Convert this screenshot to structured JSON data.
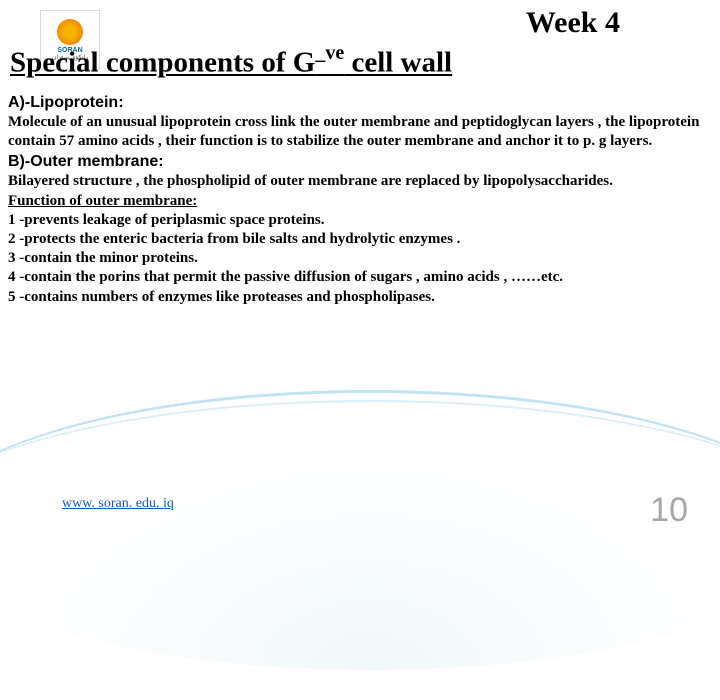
{
  "logo": {
    "name": "SORAN",
    "sub": "زانكۆی سۆران"
  },
  "week": "Week 4",
  "title_prefix": "Special components of G",
  "title_sup": "_ve",
  "title_suffix": " cell wall",
  "sectionA": "A)-Lipoprotein:",
  "bodyA": "Molecule of an unusual lipoprotein cross link the outer membrane and peptidoglycan layers , the lipoprotein contain 57 amino acids , their function is to stabilize the outer membrane and anchor it to p. g layers.",
  "sectionB": "B)-Outer membrane:",
  "bodyB1": "Bilayered structure , the phospholipid of outer membrane are replaced by lipopolysaccharides.",
  "bodyB_fn": " Function of outer membrane:",
  "list": [
    "1 -prevents leakage of periplasmic space proteins.",
    "2 -protects the enteric bacteria from bile salts and hydrolytic enzymes .",
    "3 -contain the minor proteins.",
    "4 -contain the porins that permit the passive diffusion of sugars , amino acids , ……etc.",
    "5 -contains numbers of enzymes like proteases and phospholipases."
  ],
  "footer_link": "www. soran. edu. iq",
  "page_number": "10",
  "colors": {
    "text": "#000000",
    "link": "#1155cc",
    "pagenum": "#a6a6a6",
    "swoosh": "#bfe3f5",
    "background": "#ffffff"
  }
}
